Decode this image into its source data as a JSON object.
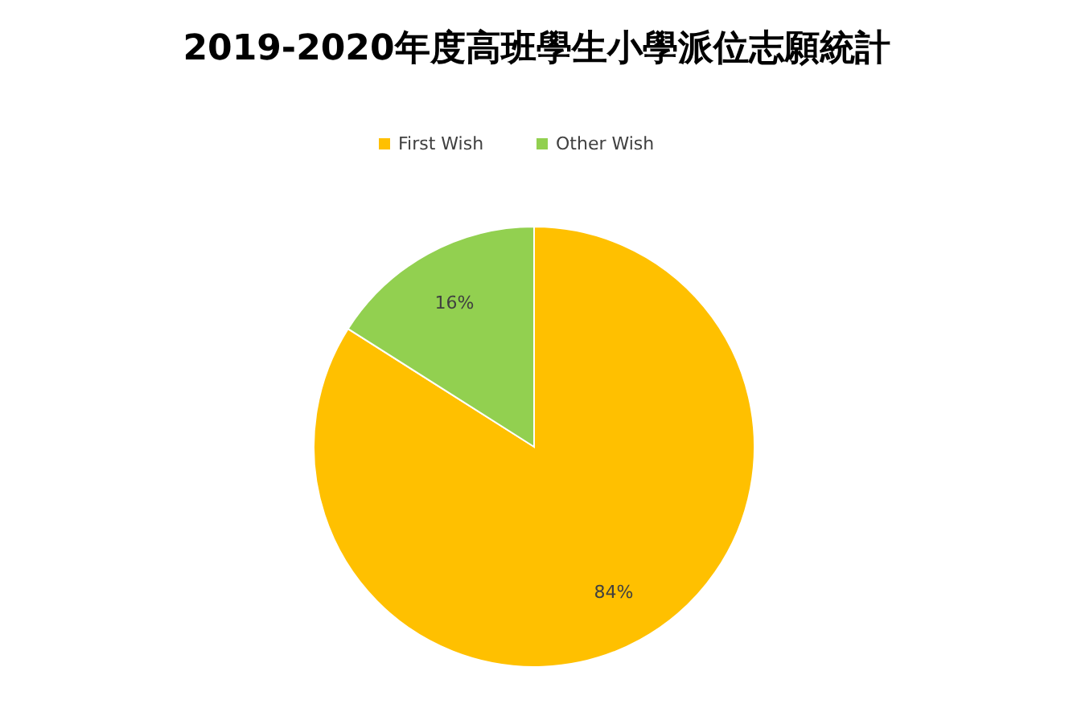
{
  "chart_data": {
    "type": "pie",
    "title": "2019-2020年度高班學生小學派位志願統計",
    "categories": [
      "First Wish",
      "Other Wish"
    ],
    "values": [
      84,
      16
    ],
    "colors": [
      "#ffc000",
      "#92d050"
    ],
    "value_labels": [
      "84%",
      "16%"
    ],
    "legend": "top"
  }
}
